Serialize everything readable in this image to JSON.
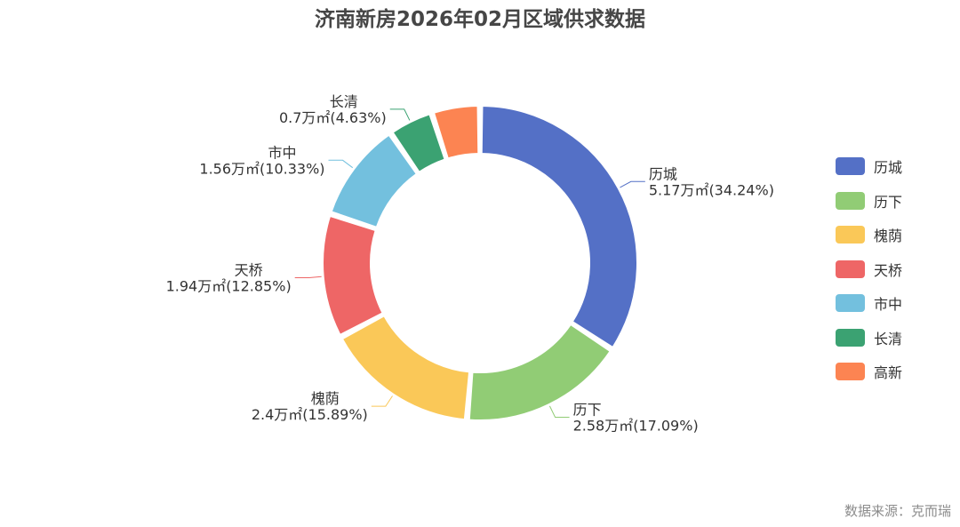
{
  "chart_data": {
    "type": "pie",
    "title": "济南新房2026年02月区域供求数据",
    "unit": "万㎡",
    "slices": [
      {
        "name": "历城",
        "value": 5.17,
        "percent": "34.24%",
        "label": "5.17万㎡(34.24%)",
        "color": "#5470c6"
      },
      {
        "name": "历下",
        "value": 2.58,
        "percent": "17.09%",
        "label": "2.58万㎡(17.09%)",
        "color": "#91cc75"
      },
      {
        "name": "槐荫",
        "value": 2.4,
        "percent": "15.89%",
        "label": "2.4万㎡(15.89%)",
        "color": "#fac858"
      },
      {
        "name": "天桥",
        "value": 1.94,
        "percent": "12.85%",
        "label": "1.94万㎡(12.85%)",
        "color": "#ee6666"
      },
      {
        "name": "市中",
        "value": 1.56,
        "percent": "10.33%",
        "label": "1.56万㎡(10.33%)",
        "color": "#73c0de"
      },
      {
        "name": "长清",
        "value": 0.7,
        "percent": "4.63%",
        "label": "0.7万㎡(4.63%)",
        "color": "#3ba272"
      },
      {
        "name": "高新",
        "value": 0.75,
        "percent": "",
        "label": "",
        "color": "#fc8452"
      }
    ],
    "legend_position": "right"
  },
  "source": "数据来源：克而瑞"
}
